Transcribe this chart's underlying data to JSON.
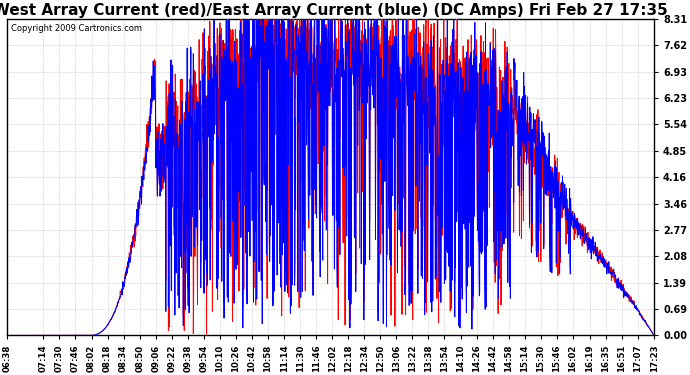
{
  "title": "West Array Current (red)/East Array Current (blue) (DC Amps) Fri Feb 27 17:35",
  "copyright": "Copyright 2009 Cartronics.com",
  "ylabel_right": [
    "8.31",
    "7.62",
    "6.93",
    "6.23",
    "5.54",
    "4.85",
    "4.16",
    "3.46",
    "2.77",
    "2.08",
    "1.39",
    "0.69",
    "0.00"
  ],
  "yticks": [
    8.31,
    7.62,
    6.93,
    6.23,
    5.54,
    4.85,
    4.16,
    3.46,
    2.77,
    2.08,
    1.39,
    0.69,
    0.0
  ],
  "ylim": [
    0.0,
    8.31
  ],
  "background_color": "#ffffff",
  "plot_background": "#ffffff",
  "grid_color": "#888888",
  "title_fontsize": 11,
  "red_color": "#ff0000",
  "blue_color": "#0000ff",
  "xtick_labels": [
    "06:38",
    "07:14",
    "07:30",
    "07:46",
    "08:02",
    "08:18",
    "08:34",
    "08:50",
    "09:06",
    "09:22",
    "09:38",
    "09:54",
    "10:10",
    "10:26",
    "10:42",
    "10:58",
    "11:14",
    "11:30",
    "11:46",
    "12:02",
    "12:18",
    "12:34",
    "12:50",
    "13:06",
    "13:22",
    "13:38",
    "13:54",
    "14:10",
    "14:26",
    "14:42",
    "14:58",
    "15:14",
    "15:30",
    "15:46",
    "16:02",
    "16:19",
    "16:35",
    "16:51",
    "17:07",
    "17:23"
  ]
}
